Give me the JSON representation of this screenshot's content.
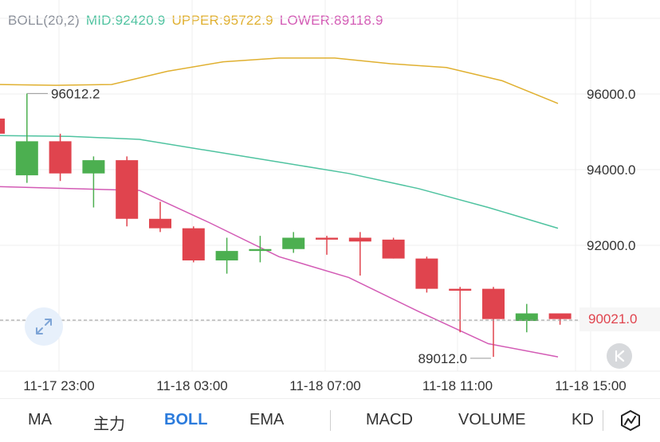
{
  "legend": {
    "name": "BOLL(20,2)",
    "mid": "MID:92420.9",
    "upper": "UPPER:95722.9",
    "lower": "LOWER:89118.9"
  },
  "colors": {
    "up": "#4caf50",
    "down": "#e0444e",
    "mid": "#4fc3a0",
    "upper": "#e0b030",
    "lower": "#d35bb5",
    "active_tab": "#2b7bdc"
  },
  "chart_data": {
    "type": "candlestick",
    "title": "",
    "ylim": [
      88700,
      97600
    ],
    "y_ticks": [
      "96000.0",
      "94000.0",
      "92000.0"
    ],
    "x_ticks": [
      "11-17 23:00",
      "11-18 03:00",
      "11-18 07:00",
      "11-18 11:00",
      "11-18 15:00"
    ],
    "current_price": "90021.0",
    "high_marker": "96012.2",
    "low_marker": "89012.0",
    "candles": [
      {
        "o": 95350,
        "h": 95800,
        "l": 93900,
        "c": 94950
      },
      {
        "o": 93850,
        "h": 96012.2,
        "l": 93650,
        "c": 94750
      },
      {
        "o": 94750,
        "h": 94950,
        "l": 93700,
        "c": 93900
      },
      {
        "o": 93900,
        "h": 94350,
        "l": 93000,
        "c": 94250
      },
      {
        "o": 94250,
        "h": 94350,
        "l": 92500,
        "c": 92700
      },
      {
        "o": 92700,
        "h": 93150,
        "l": 92350,
        "c": 92450
      },
      {
        "o": 92450,
        "h": 92500,
        "l": 91550,
        "c": 91600
      },
      {
        "o": 91600,
        "h": 92200,
        "l": 91250,
        "c": 91850
      },
      {
        "o": 91850,
        "h": 92250,
        "l": 91550,
        "c": 91900
      },
      {
        "o": 91900,
        "h": 92350,
        "l": 91800,
        "c": 92200
      },
      {
        "o": 92200,
        "h": 92250,
        "l": 91750,
        "c": 92150
      },
      {
        "o": 92200,
        "h": 92350,
        "l": 91200,
        "c": 92100
      },
      {
        "o": 92150,
        "h": 92200,
        "l": 91650,
        "c": 91650
      },
      {
        "o": 91650,
        "h": 91700,
        "l": 90750,
        "c": 90850
      },
      {
        "o": 90850,
        "h": 90900,
        "l": 89700,
        "c": 90800
      },
      {
        "o": 90850,
        "h": 90900,
        "l": 89050,
        "c": 90050
      },
      {
        "o": 90000,
        "h": 90450,
        "l": 89700,
        "c": 90200
      },
      {
        "o": 90200,
        "h": 90200,
        "l": 89900,
        "c": 90050
      }
    ],
    "upper_band": [
      96250,
      96230,
      96250,
      96600,
      96850,
      96950,
      96950,
      96800,
      96700,
      96350,
      95750
    ],
    "mid_band": [
      94900,
      94880,
      94800,
      94500,
      94200,
      93900,
      93500,
      93000,
      92450
    ],
    "lower_band": [
      93550,
      93500,
      93450,
      92600,
      91700,
      91150,
      90250,
      89400,
      89050
    ]
  },
  "tabs": [
    {
      "label": "MA",
      "active": false
    },
    {
      "label": "主力",
      "active": false
    },
    {
      "label": "BOLL",
      "active": true
    },
    {
      "label": "EMA",
      "active": false
    },
    {
      "label": "MACD",
      "active": false
    },
    {
      "label": "VOLUME",
      "active": false
    },
    {
      "label": "KD",
      "active": false
    }
  ],
  "icons": {
    "zoom": "expand-arrows-icon",
    "back": "skip-to-latest-icon",
    "chart_style": "chart-style-icon"
  }
}
